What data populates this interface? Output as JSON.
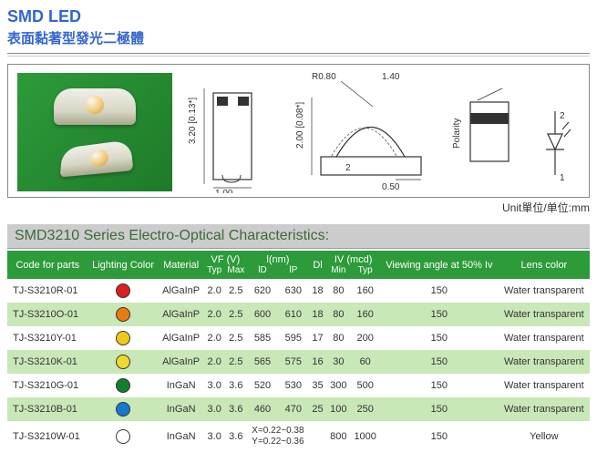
{
  "header": {
    "title_en": "SMD LED",
    "title_zh": "表面黏著型發光二極體"
  },
  "diagram": {
    "dims": {
      "r": "R0.80 [R0.03*]",
      "w_top": "1.40 [0.06*]",
      "h_left": "3.20 [0.13*]",
      "h_mid": "2.00 [0.08*]",
      "w_left": "1.00 [0.04*]",
      "w_right": "0.50 [0.02*]",
      "polarity": "Polarity Mark",
      "angle": "2"
    },
    "unit_label": "Unit單位/单位:mm"
  },
  "section_title": "SMD3210    Series  Electro-Optical Characteristics:",
  "columns": {
    "code": "Code for parts",
    "color": "Lighting Color",
    "material": "Material",
    "vf": "VF (V)",
    "typ": "Typ",
    "max": "Max",
    "lnm": "l(nm)",
    "ld": "lD",
    "lp": "lP",
    "dl": "Dl",
    "iv": "IV (mcd)",
    "min": "Min",
    "viewing": "Viewing angle at 50% Iv",
    "lens": "Lens color"
  },
  "colors": {
    "red": "#d82020",
    "orange": "#e87a10",
    "yellow": "#f0c818",
    "yellow2": "#f0d830",
    "green": "#108030",
    "blue": "#1878d0",
    "white": "#ffffff"
  },
  "rows": [
    {
      "code": "TJ-S3210R-01",
      "colorKey": "red",
      "mat": "AlGaInP",
      "vft": "2.0",
      "vfm": "2.5",
      "ld": "620",
      "lp": "630",
      "dl": "18",
      "ivmin": "80",
      "ivtyp": "160",
      "ang": "150",
      "lens": "Water transparent"
    },
    {
      "code": "TJ-S3210O-01",
      "colorKey": "orange",
      "mat": "AlGaInP",
      "vft": "2.0",
      "vfm": "2.5",
      "ld": "600",
      "lp": "610",
      "dl": "18",
      "ivmin": "80",
      "ivtyp": "160",
      "ang": "150",
      "lens": "Water transparent"
    },
    {
      "code": "TJ-S3210Y-01",
      "colorKey": "yellow",
      "mat": "AlGaInP",
      "vft": "2.0",
      "vfm": "2.5",
      "ld": "585",
      "lp": "595",
      "dl": "17",
      "ivmin": "80",
      "ivtyp": "200",
      "ang": "150",
      "lens": "Water transparent"
    },
    {
      "code": "TJ-S3210K-01",
      "colorKey": "yellow2",
      "mat": "AlGaInP",
      "vft": "2.0",
      "vfm": "2.5",
      "ld": "565",
      "lp": "575",
      "dl": "16",
      "ivmin": "30",
      "ivtyp": "60",
      "ang": "150",
      "lens": "Water transparent"
    },
    {
      "code": "TJ-S3210G-01",
      "colorKey": "green",
      "mat": "InGaN",
      "vft": "3.0",
      "vfm": "3.6",
      "ld": "520",
      "lp": "530",
      "dl": "35",
      "ivmin": "300",
      "ivtyp": "500",
      "ang": "150",
      "lens": "Water transparent"
    },
    {
      "code": "TJ-S3210B-01",
      "colorKey": "blue",
      "mat": "InGaN",
      "vft": "3.0",
      "vfm": "3.6",
      "ld": "460",
      "lp": "470",
      "dl": "25",
      "ivmin": "100",
      "ivtyp": "250",
      "ang": "150",
      "lens": "Water transparent"
    },
    {
      "code": "TJ-S3210W-01",
      "colorKey": "white",
      "mat": "InGaN",
      "vft": "3.0",
      "vfm": "3.6",
      "ld": "X=0.22~0.38",
      "lp": "Y=0.22~0.36",
      "dl": "",
      "ivmin": "800",
      "ivtyp": "1000",
      "ang": "150",
      "lens": "Yellow",
      "special": true
    }
  ]
}
